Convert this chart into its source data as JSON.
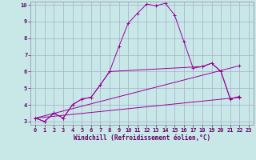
{
  "background_color": "#c8e8e8",
  "grid_color": "#aaaacc",
  "line_color": "#990099",
  "xlabel": "Windchill (Refroidissement éolien,°C)",
  "xlim": [
    -0.5,
    23.5
  ],
  "ylim": [
    2.8,
    10.2
  ],
  "xticks": [
    0,
    1,
    2,
    3,
    4,
    5,
    6,
    7,
    8,
    9,
    10,
    11,
    12,
    13,
    14,
    15,
    16,
    17,
    18,
    19,
    20,
    21,
    22,
    23
  ],
  "yticks": [
    3,
    4,
    5,
    6,
    7,
    8,
    9,
    10
  ],
  "s1x": [
    0,
    1,
    2,
    3,
    4,
    5,
    6,
    7,
    8,
    9,
    10,
    11,
    12,
    13,
    14,
    15,
    16,
    17,
    18,
    19,
    20,
    21,
    22
  ],
  "s1y": [
    3.2,
    3.0,
    3.5,
    3.2,
    4.0,
    4.35,
    4.45,
    5.2,
    6.0,
    7.5,
    8.9,
    9.5,
    10.05,
    9.95,
    10.1,
    9.4,
    7.8,
    6.2,
    6.3,
    6.5,
    6.0,
    4.35,
    4.5
  ],
  "s2x": [
    0,
    1,
    2,
    3,
    4,
    5,
    6,
    7,
    8,
    18,
    19,
    20,
    21,
    22
  ],
  "s2y": [
    3.2,
    3.0,
    3.5,
    3.2,
    4.0,
    4.35,
    4.45,
    5.2,
    6.0,
    6.3,
    6.5,
    6.0,
    4.35,
    4.5
  ],
  "sl1x": [
    0,
    22
  ],
  "sl1y": [
    3.2,
    4.45
  ],
  "sl2x": [
    0,
    22
  ],
  "sl2y": [
    3.2,
    6.35
  ]
}
